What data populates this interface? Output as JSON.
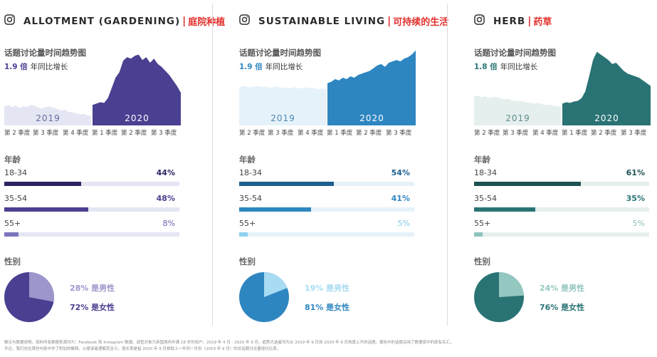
{
  "panels": [
    {
      "title": "ALLOTMENT (GARDENING)",
      "separator": "|",
      "title_cn": "庭院种植",
      "trend_title": "话题讨论量时间趋势图",
      "growth_value": "1.9 倍",
      "growth_label": "年同比增长",
      "year_prev": "2019",
      "year_curr": "2020",
      "quarters": [
        "第 2 季度",
        "第 3 季度",
        "第 4 季度",
        "第 1 季度",
        "第 2 季度",
        "第 3 季度"
      ],
      "age_title": "年龄",
      "ages": [
        {
          "label": "18-34",
          "value": "44%",
          "fraction": 0.44
        },
        {
          "label": "35-54",
          "value": "48%",
          "fraction": 0.48
        },
        {
          "label": "55+",
          "value": "8%",
          "fraction": 0.08
        }
      ],
      "gender_title": "性别",
      "male": {
        "text": "28% 是男性",
        "fraction": 0.28
      },
      "female": {
        "text": "72% 是女性",
        "fraction": 0.72
      },
      "colors": {
        "accent": "#4a4091",
        "light": "#e4e6f3",
        "bar1": "#2a2463",
        "bar2": "#4a4091",
        "bar3": "#7c74bf",
        "male": "#9b97cc",
        "text_male": "#9b97cc",
        "pct3": "#6c64b3"
      }
    },
    {
      "title": "SUSTAINABLE LIVING",
      "separator": "|",
      "title_cn": "可持续的生活",
      "trend_title": "话题讨论量时间趋势图",
      "growth_value": "1.9 倍",
      "growth_label": "年同比增长",
      "year_prev": "2019",
      "year_curr": "2020",
      "quarters": [
        "第 2 季度",
        "第 3 季度",
        "第 4 季度",
        "第 1 季度",
        "第 2 季度",
        "第 3 季度"
      ],
      "age_title": "年龄",
      "ages": [
        {
          "label": "18-34",
          "value": "54%",
          "fraction": 0.54
        },
        {
          "label": "35-54",
          "value": "41%",
          "fraction": 0.41
        },
        {
          "label": "55+",
          "value": "5%",
          "fraction": 0.05
        }
      ],
      "gender_title": "性别",
      "male": {
        "text": "19% 是男性",
        "fraction": 0.19
      },
      "female": {
        "text": "81% 是女性",
        "fraction": 0.81
      },
      "colors": {
        "accent": "#2e86c1",
        "light": "#e6f2f9",
        "bar1": "#1d5f8f",
        "bar2": "#2e86c1",
        "bar3": "#8fd0ef",
        "male": "#a8dcf3",
        "text_male": "#a8dcf3",
        "pct3": "#7fc8ea"
      }
    },
    {
      "title": "HERB",
      "separator": "|",
      "title_cn": "药草",
      "trend_title": "话题讨论量时间趋势图",
      "growth_value": "1.8 倍",
      "growth_label": "年同比增长",
      "year_prev": "2019",
      "year_curr": "2020",
      "quarters": [
        "第 2 季度",
        "第 3 季度",
        "第 4 季度",
        "第 1 季度",
        "第 2 季度",
        "第 3 季度"
      ],
      "age_title": "年龄",
      "ages": [
        {
          "label": "18-34",
          "value": "61%",
          "fraction": 0.61
        },
        {
          "label": "35-54",
          "value": "35%",
          "fraction": 0.35
        },
        {
          "label": "55+",
          "value": "5%",
          "fraction": 0.05
        }
      ],
      "gender_title": "性别",
      "male": {
        "text": "24% 是男性",
        "fraction": 0.24
      },
      "female": {
        "text": "76% 是女性",
        "fraction": 0.76
      },
      "colors": {
        "accent": "#2a7374",
        "light": "#e5efee",
        "bar1": "#1f5253",
        "bar2": "#2a7374",
        "bar3": "#8cc3bd",
        "male": "#93c7bf",
        "text_male": "#93c7bf",
        "pct3": "#8cc3bd"
      }
    }
  ],
  "footnote": {
    "line1": "脚注与数据说明。资料所有数据来源均为：Facebook 和 Instagram 数据。调查对象为英国境内年满 18 岁的用户。2019 年 4 月 - 2020 年 9 月。趋势大选者均为从 2019 年 9 月到 2020 年 9 月热度上升的话题。报告中的话题沿用了数据库中的原有名汇。",
    "line2": "不过，我们也在某些内容中作了附加的解释，以便读者理解其含义。增长率是指 2020 年 9 月相较上一年同一月份（2019 年 9 月）的总话题讨论量增长比率。"
  }
}
